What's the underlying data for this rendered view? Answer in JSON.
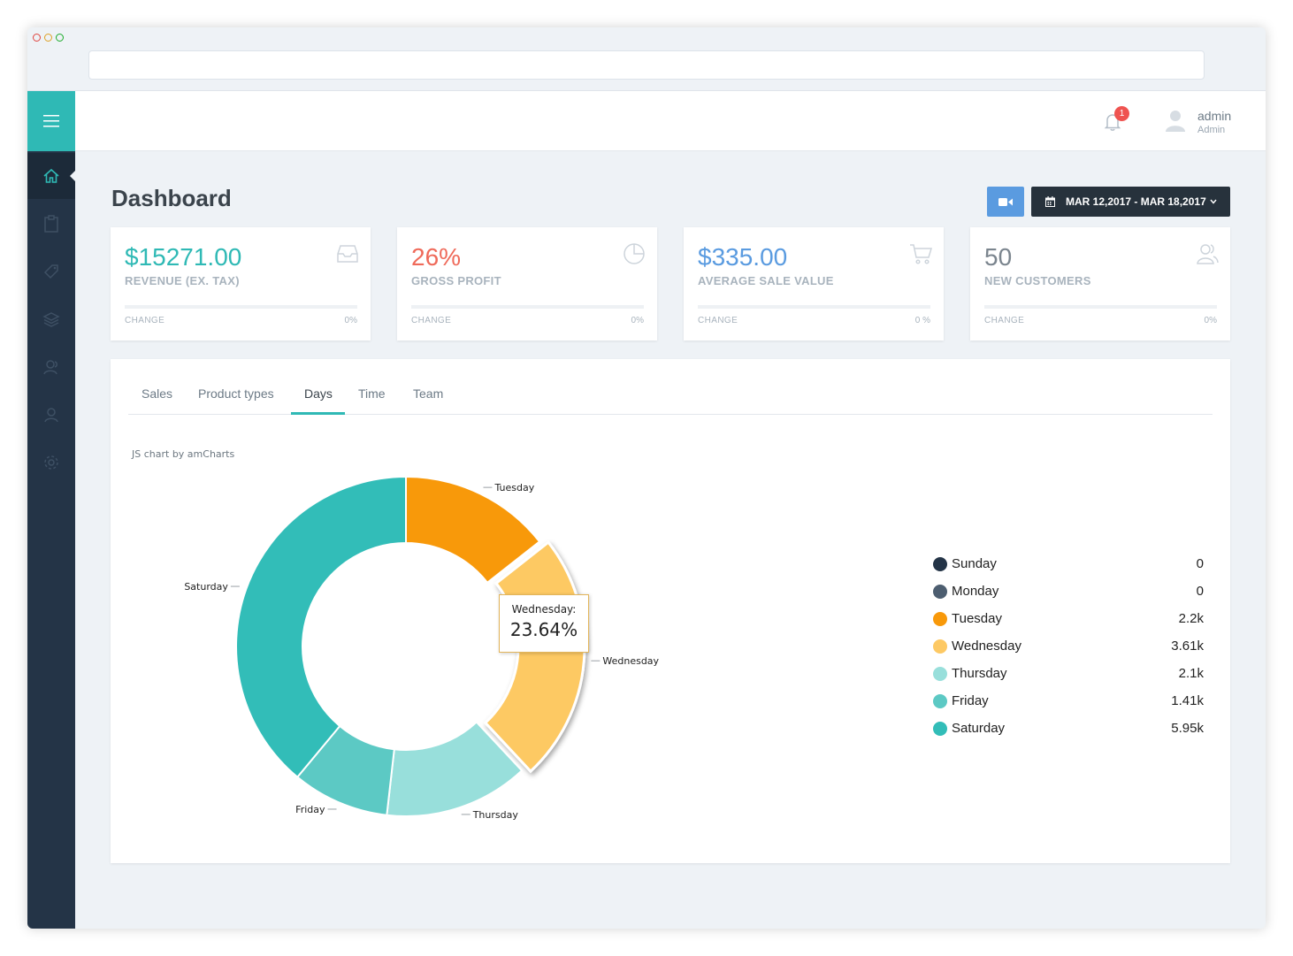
{
  "topbar": {
    "notification_count": "1",
    "user_name": "admin",
    "user_role": "Admin"
  },
  "page": {
    "title": "Dashboard",
    "date_range": "MAR 12,2017 - MAR 18,2017"
  },
  "sidebar": {
    "items": [
      "home-icon",
      "clipboard-icon",
      "tag-icon",
      "layers-icon",
      "users-icon",
      "user-icon",
      "gear-icon"
    ]
  },
  "cards": [
    {
      "value": "$15271.00",
      "label": "REVENUE (EX. TAX)",
      "change_label": "CHANGE",
      "change": "0%",
      "color": "#2fb9b5",
      "icon": "inbox-icon"
    },
    {
      "value": "26%",
      "label": "GROSS PROFIT",
      "change_label": "CHANGE",
      "change": "0%",
      "color": "#ef6a5a",
      "icon": "pie-chart-icon"
    },
    {
      "value": "$335.00",
      "label": "AVERAGE SALE VALUE",
      "change_label": "CHANGE",
      "change": "0 %",
      "color": "#5a9be0",
      "icon": "cart-icon"
    },
    {
      "value": "50",
      "label": "NEW CUSTOMERS",
      "change_label": "CHANGE",
      "change": "0%",
      "color": "#7b858e",
      "icon": "users-icon"
    }
  ],
  "tabs": [
    "Sales",
    "Product types",
    "Days",
    "Time",
    "Team"
  ],
  "active_tab": "Days",
  "chart_credit": "JS chart by amCharts",
  "tooltip": {
    "label": "Wednesday:",
    "value": "23.64%"
  },
  "chart_data": {
    "type": "pie",
    "donut": true,
    "categories": [
      "Sunday",
      "Monday",
      "Tuesday",
      "Wednesday",
      "Thursday",
      "Friday",
      "Saturday"
    ],
    "values": [
      0,
      0,
      2200,
      3610,
      2100,
      1410,
      5950
    ],
    "value_labels": [
      "0",
      "0",
      "2.2k",
      "3.61k",
      "2.1k",
      "1.41k",
      "5.95k"
    ],
    "colors": [
      "#243447",
      "#4d5e70",
      "#f8990a",
      "#fdc964",
      "#98dfdb",
      "#5cc9c4",
      "#32bdb8"
    ],
    "highlighted": "Wednesday",
    "legend": "right"
  }
}
